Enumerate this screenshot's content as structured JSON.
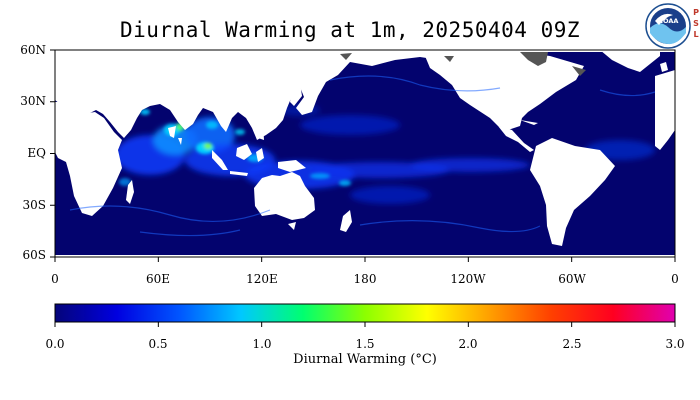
{
  "title": "Diurnal Warming at 1m, 20250404 09Z",
  "logo": {
    "name": "NOAA",
    "side_letters": [
      "P",
      "S",
      "L"
    ]
  },
  "map": {
    "lat_labels": [
      "60N",
      "30N",
      "EQ",
      "30S",
      "60S"
    ],
    "lon_labels": [
      "0",
      "60E",
      "120E",
      "180",
      "120W",
      "60W",
      "0"
    ],
    "ocean_base_color": "#03036e",
    "land_color": "#ffffff",
    "sea_ice_color": "#555555"
  },
  "colorbar": {
    "tick_labels": [
      "0.0",
      "0.5",
      "1.0",
      "1.5",
      "2.0",
      "2.5",
      "3.0"
    ],
    "title": "Diurnal Warming (°C)",
    "range": [
      0.0,
      3.0
    ],
    "colors": [
      "#05057a",
      "#0000e0",
      "#0055ff",
      "#00c8ff",
      "#00ff70",
      "#8cff00",
      "#ffff00",
      "#ffa000",
      "#ff4000",
      "#ff0020",
      "#e000b0"
    ]
  }
}
